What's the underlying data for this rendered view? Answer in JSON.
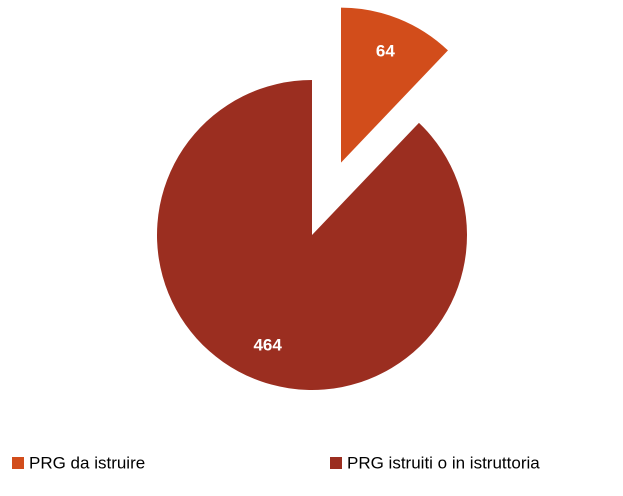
{
  "chart_data": {
    "type": "pie",
    "categories": [
      "PRG da istruire",
      "PRG istruiti o in istruttoria"
    ],
    "values": [
      64,
      464
    ],
    "colors": [
      "#d24d1b",
      "#9b2e20"
    ],
    "exploded": [
      true,
      false
    ]
  }
}
